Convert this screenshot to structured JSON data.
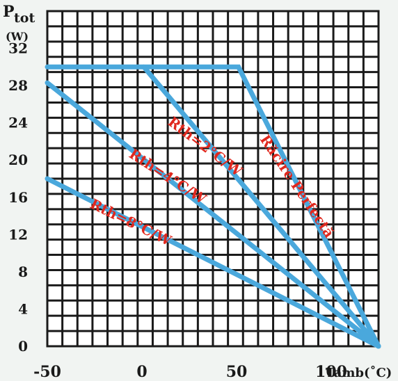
{
  "chart_data": {
    "type": "line",
    "title": "",
    "ylabel_main": "P",
    "ylabel_sub": "tot",
    "ylabel_unit": "(W)",
    "xlabel": "Tamb(˚C)",
    "xlim": [
      -50,
      125
    ],
    "ylim": [
      0,
      36
    ],
    "x_ticks": [
      {
        "value": -50,
        "label": "-50"
      },
      {
        "value": 0,
        "label": "0"
      },
      {
        "value": 50,
        "label": "50"
      },
      {
        "value": 100,
        "label": "100"
      }
    ],
    "y_ticks": [
      {
        "value": 0,
        "label": "0"
      },
      {
        "value": 4,
        "label": "4"
      },
      {
        "value": 8,
        "label": "8"
      },
      {
        "value": 12,
        "label": "12"
      },
      {
        "value": 16,
        "label": "16"
      },
      {
        "value": 20,
        "label": "20"
      },
      {
        "value": 24,
        "label": "24"
      },
      {
        "value": 28,
        "label": "28"
      },
      {
        "value": 32,
        "label": "32"
      }
    ],
    "grid": true,
    "series": [
      {
        "name": "Răcire Perfectă",
        "points": [
          [
            -50,
            30
          ],
          [
            1,
            30
          ],
          [
            51,
            30
          ],
          [
            125,
            0
          ]
        ]
      },
      {
        "name": "Rth=2°C/W",
        "points": [
          [
            1,
            30
          ],
          [
            125,
            0
          ]
        ]
      },
      {
        "name": "Rth=4°C/W",
        "points": [
          [
            -50,
            28.3
          ],
          [
            125,
            0
          ]
        ]
      },
      {
        "name": "Rth=8°C/W",
        "points": [
          [
            -50,
            18
          ],
          [
            125,
            0
          ]
        ]
      }
    ],
    "line_color": "#4aa8dc",
    "label_color": "#e0281e"
  }
}
